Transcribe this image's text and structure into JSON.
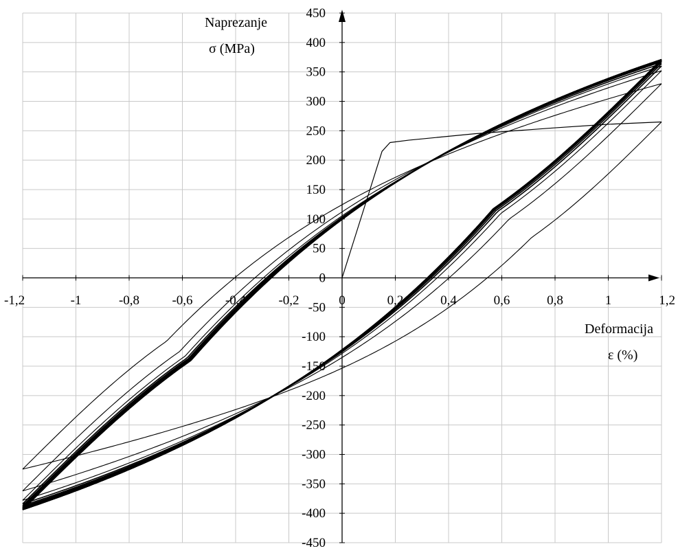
{
  "chart_data": {
    "type": "line",
    "title": "",
    "y_axis_title": [
      "Naprezanje",
      "σ (MPa)"
    ],
    "x_axis_title": [
      "Deformacija",
      "ε (%)"
    ],
    "xlim": [
      -1.2,
      1.2
    ],
    "ylim": [
      -450,
      450
    ],
    "x_step": 0.2,
    "y_step": 50,
    "grid": true,
    "x_tick_labels": [
      "-1,2",
      "-1",
      "-0,8",
      "-0,6",
      "-0,4",
      "-0,2",
      "0",
      "0,2",
      "0,4",
      "0,6",
      "0,8",
      "1",
      "1,2"
    ],
    "y_tick_labels": [
      "450",
      "400",
      "350",
      "300",
      "250",
      "200",
      "150",
      "100",
      "50",
      "0",
      "-50",
      "-100",
      "-150",
      "-200",
      "-250",
      "-300",
      "-350",
      "-400",
      "-450"
    ],
    "initial_loading": {
      "x": [
        0,
        0.15,
        0.18,
        0.25,
        0.5,
        0.8,
        1.0,
        1.2
      ],
      "y": [
        0,
        215,
        230,
        234,
        245,
        255,
        261,
        265
      ]
    },
    "series": [
      {
        "peak_tension": 265,
        "peak_compression": -325,
        "first_half": false
      },
      {
        "peak_tension": 330,
        "peak_compression": -362,
        "first_half": true
      },
      {
        "peak_tension": 352,
        "peak_compression": -378,
        "first_half": true
      },
      {
        "peak_tension": 360,
        "peak_compression": -384,
        "first_half": true
      },
      {
        "peak_tension": 364,
        "peak_compression": -387,
        "first_half": true
      },
      {
        "peak_tension": 367,
        "peak_compression": -389,
        "first_half": true
      },
      {
        "peak_tension": 368,
        "peak_compression": -390,
        "first_half": true
      },
      {
        "peak_tension": 369,
        "peak_compression": -391,
        "first_half": true
      },
      {
        "peak_tension": 370,
        "peak_compression": -392,
        "first_half": true
      },
      {
        "peak_tension": 370,
        "peak_compression": -393,
        "first_half": true
      },
      {
        "peak_tension": 371,
        "peak_compression": -393,
        "first_half": true
      },
      {
        "peak_tension": 371,
        "peak_compression": -394,
        "first_half": true
      },
      {
        "peak_tension": 371,
        "peak_compression": -394,
        "first_half": true
      },
      {
        "peak_tension": 371,
        "peak_compression": -394,
        "first_half": true
      }
    ]
  }
}
